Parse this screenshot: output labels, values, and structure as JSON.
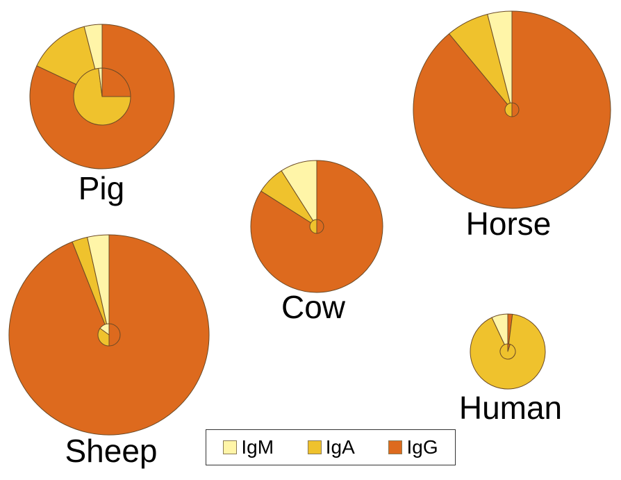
{
  "chart_data": {
    "type": "pie",
    "title": "",
    "colors": {
      "IgM": "#fff5a8",
      "IgA": "#efc22d",
      "IgG": "#dd6a1e"
    },
    "series_names": [
      "IgM",
      "IgA",
      "IgG"
    ],
    "legend": {
      "placement": "bottom-center",
      "entries": [
        "IgM",
        "IgA",
        "IgG"
      ]
    },
    "pies": [
      {
        "label": "Pig",
        "outer": {
          "IgM": 4,
          "IgA": 14,
          "IgG": 82
        },
        "inner": {
          "IgM": 2,
          "IgA": 73,
          "IgG": 25
        }
      },
      {
        "label": "Horse",
        "outer": {
          "IgM": 4,
          "IgA": 7,
          "IgG": 89
        },
        "inner": {
          "IgM": 0,
          "IgA": 50,
          "IgG": 50
        }
      },
      {
        "label": "Cow",
        "outer": {
          "IgM": 9,
          "IgA": 7,
          "IgG": 84
        },
        "inner": {
          "IgM": 0,
          "IgA": 50,
          "IgG": 50
        }
      },
      {
        "label": "Sheep",
        "outer": {
          "IgM": 3.5,
          "IgA": 2.5,
          "IgG": 94
        },
        "inner": {
          "IgM": 15,
          "IgA": 35,
          "IgG": 50
        }
      },
      {
        "label": "Human",
        "outer": {
          "IgM": 7,
          "IgA": 91,
          "IgG": 2
        },
        "inner": {
          "IgM": 0,
          "IgA": 95,
          "IgG": 5
        }
      }
    ]
  }
}
